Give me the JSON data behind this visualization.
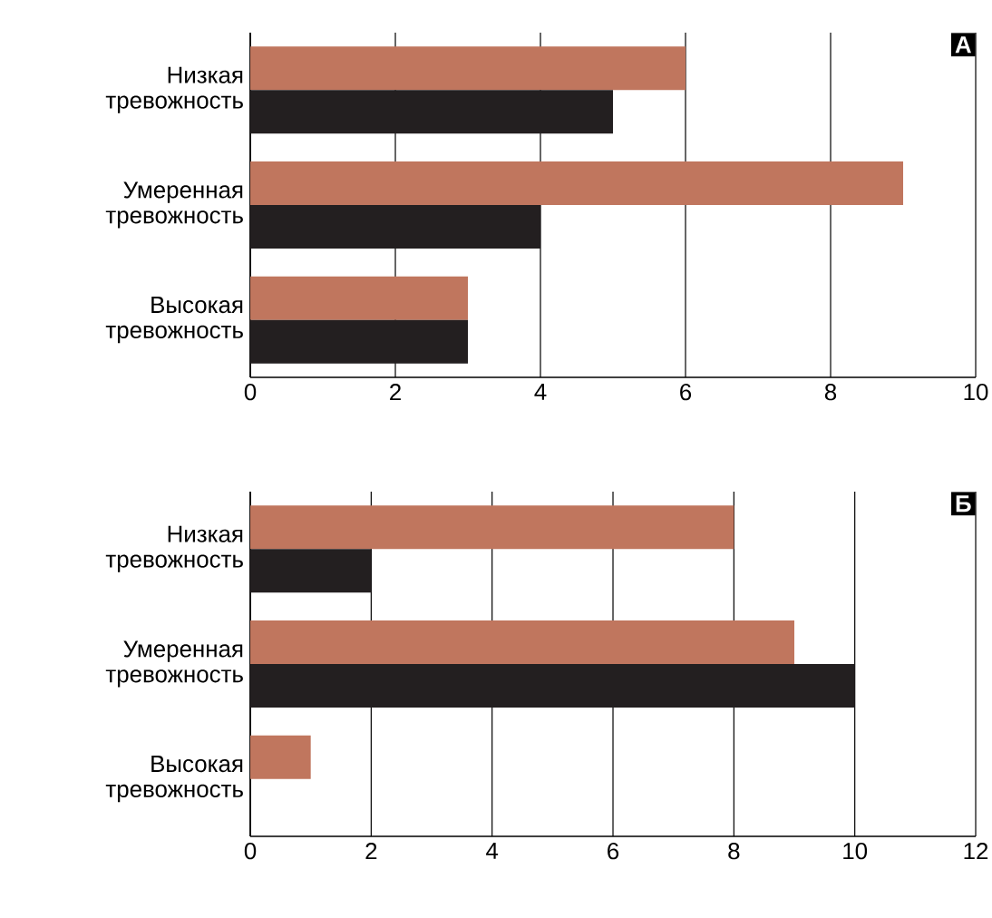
{
  "chart_data": [
    {
      "type": "bar",
      "orientation": "horizontal",
      "categories": [
        "Низкая тревожность",
        "Умеренная тревожность",
        "Высокая тревожность"
      ],
      "series": [
        {
          "color": "#c0765e",
          "values": [
            6,
            9,
            3
          ]
        },
        {
          "color": "#231f20",
          "values": [
            5,
            4,
            3
          ]
        }
      ],
      "xlim": [
        0,
        10
      ],
      "xticks": [
        0,
        2,
        4,
        6,
        8,
        10
      ],
      "grid": "x",
      "annotations": [
        "А"
      ]
    },
    {
      "type": "bar",
      "orientation": "horizontal",
      "categories": [
        "Низкая тревожность",
        "Умеренная тревожность",
        "Высокая тревожность"
      ],
      "series": [
        {
          "color": "#c0765e",
          "values": [
            8,
            9,
            1
          ]
        },
        {
          "color": "#231f20",
          "values": [
            2,
            10,
            0
          ]
        }
      ],
      "xlim": [
        0,
        12
      ],
      "xticks": [
        0,
        2,
        4,
        6,
        8,
        10,
        12
      ],
      "grid": "x",
      "annotations": [
        "Б"
      ]
    }
  ]
}
